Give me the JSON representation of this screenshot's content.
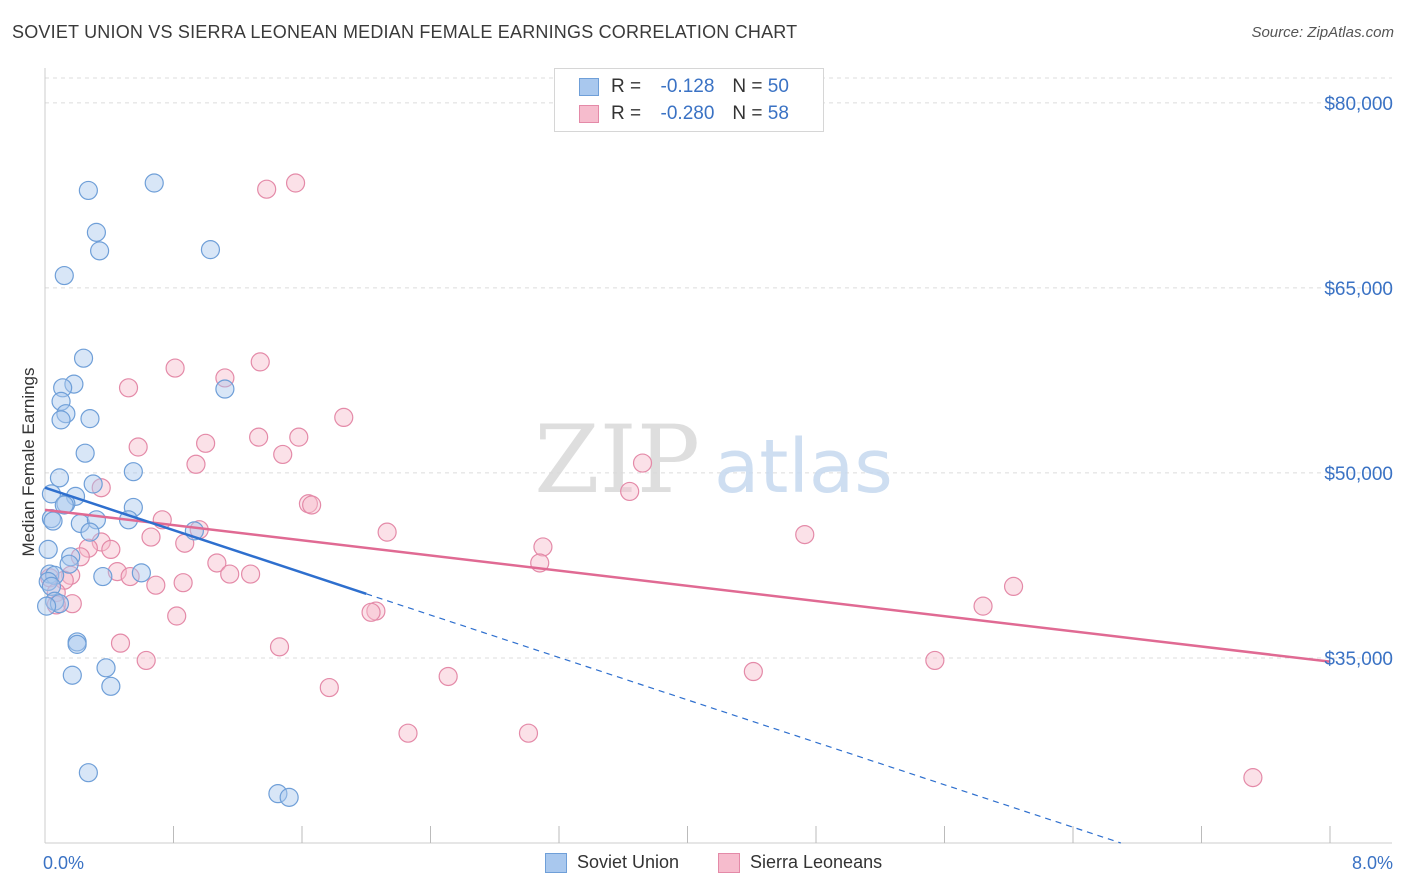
{
  "header": {
    "title": "SOVIET UNION VS SIERRA LEONEAN MEDIAN FEMALE EARNINGS CORRELATION CHART",
    "source": "Source: ZipAtlas.com"
  },
  "watermark": {
    "zip": "ZIP",
    "atlas": "atlas"
  },
  "legend": {
    "series1": {
      "r_label": "R =",
      "r_value": "-0.128",
      "n_label": "N =",
      "n_value": "50"
    },
    "series2": {
      "r_label": "R =",
      "r_value": "-0.280",
      "n_label": "N =",
      "n_value": "58"
    }
  },
  "bottom_legend": {
    "series1": "Soviet Union",
    "series2": "Sierra Leoneans"
  },
  "colors": {
    "blue_fill": "#a9c8ee",
    "blue_stroke": "#6f9fd8",
    "blue_line": "#2e6fce",
    "pink_fill": "#f6bccd",
    "pink_stroke": "#e48aa8",
    "pink_line": "#e06a93",
    "tick_label": "#3a72c4",
    "grid": "#dcdcdc"
  },
  "chart_data": {
    "type": "scatter",
    "title": "SOVIET UNION VS SIERRA LEONEAN MEDIAN FEMALE EARNINGS CORRELATION CHART",
    "xlabel": "",
    "ylabel": "Median Female Earnings",
    "xlim": [
      0,
      8.0
    ],
    "ylim": [
      20000,
      82500
    ],
    "x_tick_labels": [
      "0.0%",
      "8.0%"
    ],
    "y_ticks": [
      35000,
      50000,
      65000,
      80000
    ],
    "y_tick_labels": [
      "$35,000",
      "$50,000",
      "$65,000",
      "$80,000"
    ],
    "series": [
      {
        "name": "Soviet Union",
        "r": -0.128,
        "n": 50,
        "trend": {
          "x0": 0.0,
          "y0": 48800,
          "x1": 2.0,
          "y1": 40200,
          "dash_to_x": 8.0
        },
        "points": [
          [
            0.27,
            72900
          ],
          [
            0.68,
            73500
          ],
          [
            0.34,
            68000
          ],
          [
            0.32,
            69500
          ],
          [
            1.03,
            68100
          ],
          [
            0.12,
            66000
          ],
          [
            0.24,
            59300
          ],
          [
            0.18,
            57200
          ],
          [
            0.11,
            56900
          ],
          [
            1.12,
            56800
          ],
          [
            0.1,
            55800
          ],
          [
            0.13,
            54800
          ],
          [
            0.1,
            54300
          ],
          [
            0.28,
            54400
          ],
          [
            0.25,
            51600
          ],
          [
            0.55,
            50100
          ],
          [
            0.09,
            49600
          ],
          [
            0.3,
            49100
          ],
          [
            0.04,
            48300
          ],
          [
            0.19,
            48100
          ],
          [
            0.13,
            47500
          ],
          [
            0.12,
            47400
          ],
          [
            0.55,
            47200
          ],
          [
            0.04,
            46300
          ],
          [
            0.05,
            46100
          ],
          [
            0.22,
            45900
          ],
          [
            0.32,
            46200
          ],
          [
            0.52,
            46200
          ],
          [
            0.28,
            45200
          ],
          [
            0.93,
            45300
          ],
          [
            0.02,
            43800
          ],
          [
            0.16,
            43200
          ],
          [
            0.15,
            42600
          ],
          [
            0.03,
            41800
          ],
          [
            0.06,
            41700
          ],
          [
            0.36,
            41600
          ],
          [
            0.6,
            41900
          ],
          [
            0.02,
            41200
          ],
          [
            0.04,
            40800
          ],
          [
            0.06,
            39600
          ],
          [
            0.09,
            39400
          ],
          [
            0.2,
            36300
          ],
          [
            0.2,
            36100
          ],
          [
            0.38,
            34200
          ],
          [
            0.17,
            33600
          ],
          [
            0.41,
            32700
          ],
          [
            0.27,
            25700
          ],
          [
            1.45,
            24000
          ],
          [
            1.52,
            23700
          ],
          [
            0.01,
            39200
          ]
        ]
      },
      {
        "name": "Sierra Leoneans",
        "r": -0.28,
        "n": 58,
        "trend": {
          "x0": 0.0,
          "y0": 47000,
          "x1": 8.0,
          "y1": 34700
        },
        "points": [
          [
            1.38,
            73000
          ],
          [
            1.56,
            73500
          ],
          [
            1.34,
            59000
          ],
          [
            0.81,
            58500
          ],
          [
            1.12,
            57700
          ],
          [
            0.52,
            56900
          ],
          [
            1.86,
            54500
          ],
          [
            1.33,
            52900
          ],
          [
            1.58,
            52900
          ],
          [
            1.0,
            52400
          ],
          [
            0.58,
            52100
          ],
          [
            1.48,
            51500
          ],
          [
            0.94,
            50700
          ],
          [
            3.72,
            50800
          ],
          [
            0.35,
            48800
          ],
          [
            3.64,
            48500
          ],
          [
            1.64,
            47500
          ],
          [
            1.66,
            47400
          ],
          [
            0.73,
            46200
          ],
          [
            0.96,
            45400
          ],
          [
            2.13,
            45200
          ],
          [
            4.73,
            45000
          ],
          [
            0.66,
            44800
          ],
          [
            0.35,
            44400
          ],
          [
            0.87,
            44300
          ],
          [
            0.27,
            43900
          ],
          [
            0.41,
            43800
          ],
          [
            3.1,
            44000
          ],
          [
            0.22,
            43200
          ],
          [
            1.07,
            42700
          ],
          [
            3.08,
            42700
          ],
          [
            0.45,
            42000
          ],
          [
            1.28,
            41800
          ],
          [
            1.15,
            41800
          ],
          [
            0.16,
            41700
          ],
          [
            0.53,
            41600
          ],
          [
            0.03,
            41500
          ],
          [
            0.12,
            41300
          ],
          [
            0.86,
            41100
          ],
          [
            0.69,
            40900
          ],
          [
            6.03,
            40800
          ],
          [
            0.07,
            40300
          ],
          [
            0.17,
            39400
          ],
          [
            0.07,
            39300
          ],
          [
            5.84,
            39200
          ],
          [
            2.06,
            38800
          ],
          [
            2.03,
            38700
          ],
          [
            0.82,
            38400
          ],
          [
            0.47,
            36200
          ],
          [
            1.46,
            35900
          ],
          [
            0.63,
            34800
          ],
          [
            5.54,
            34800
          ],
          [
            4.41,
            33900
          ],
          [
            2.51,
            33500
          ],
          [
            1.77,
            32600
          ],
          [
            2.26,
            28900
          ],
          [
            3.01,
            28900
          ],
          [
            7.52,
            25300
          ]
        ]
      }
    ]
  }
}
